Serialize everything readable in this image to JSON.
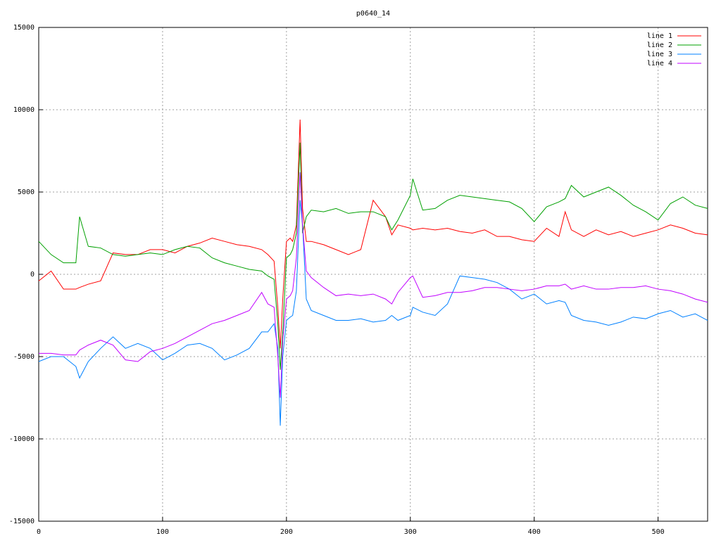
{
  "chart_data": {
    "type": "line",
    "title": "p0640_14",
    "x": [
      0,
      10,
      20,
      30,
      33,
      40,
      50,
      60,
      70,
      80,
      90,
      100,
      110,
      120,
      130,
      140,
      150,
      160,
      170,
      180,
      185,
      190,
      193,
      195,
      197,
      200,
      203,
      205,
      208,
      211,
      213,
      216,
      220,
      230,
      240,
      250,
      260,
      270,
      280,
      285,
      290,
      300,
      302,
      310,
      320,
      330,
      340,
      350,
      360,
      370,
      380,
      390,
      400,
      410,
      420,
      425,
      430,
      440,
      450,
      460,
      470,
      480,
      490,
      500,
      510,
      520,
      530,
      540
    ],
    "series": [
      {
        "name": "line 1",
        "color": "#ff0000",
        "values": [
          -400,
          200,
          -900,
          -900,
          -800,
          -600,
          -400,
          1300,
          1200,
          1200,
          1500,
          1500,
          1300,
          1700,
          1900,
          2200,
          2000,
          1800,
          1700,
          1500,
          1200,
          800,
          -2000,
          -4500,
          -1500,
          2000,
          2200,
          2000,
          3000,
          9400,
          4000,
          2000,
          2000,
          1800,
          1500,
          1200,
          1500,
          4500,
          3500,
          2400,
          3000,
          2800,
          2700,
          2800,
          2700,
          2800,
          2600,
          2500,
          2700,
          2300,
          2300,
          2100,
          2000,
          2800,
          2300,
          3800,
          2700,
          2300,
          2700,
          2400,
          2600,
          2300,
          2500,
          2700,
          3000,
          2800,
          2500,
          2400
        ]
      },
      {
        "name": "line 2",
        "color": "#00a000",
        "values": [
          2000,
          1200,
          700,
          700,
          3500,
          1700,
          1600,
          1200,
          1100,
          1200,
          1300,
          1200,
          1500,
          1700,
          1600,
          1000,
          700,
          500,
          300,
          200,
          -100,
          -300,
          -3000,
          -5800,
          -3500,
          1000,
          1200,
          1500,
          2500,
          8000,
          2500,
          3500,
          3900,
          3800,
          4000,
          3700,
          3800,
          3800,
          3500,
          2700,
          3300,
          4800,
          5800,
          3900,
          4000,
          4500,
          4800,
          4700,
          4600,
          4500,
          4400,
          4000,
          3200,
          4100,
          4400,
          4600,
          5400,
          4700,
          5000,
          5300,
          4800,
          4200,
          3800,
          3300,
          4300,
          4700,
          4200,
          4000
        ]
      },
      {
        "name": "line 3",
        "color": "#0080ff",
        "values": [
          -5300,
          -5000,
          -5000,
          -5600,
          -6300,
          -5300,
          -4500,
          -3800,
          -4500,
          -4200,
          -4500,
          -5200,
          -4800,
          -4300,
          -4200,
          -4500,
          -5200,
          -4900,
          -4500,
          -3500,
          -3500,
          -3000,
          -4500,
          -9200,
          -5000,
          -2800,
          -2600,
          -2500,
          -1000,
          4500,
          3000,
          -1500,
          -2200,
          -2500,
          -2800,
          -2800,
          -2700,
          -2900,
          -2800,
          -2500,
          -2800,
          -2500,
          -2000,
          -2300,
          -2500,
          -1800,
          -100,
          -200,
          -300,
          -500,
          -900,
          -1500,
          -1200,
          -1800,
          -1600,
          -1700,
          -2500,
          -2800,
          -2900,
          -3100,
          -2900,
          -2600,
          -2700,
          -2400,
          -2200,
          -2600,
          -2400,
          -2800
        ]
      },
      {
        "name": "line 4",
        "color": "#c000ff",
        "values": [
          -4800,
          -4800,
          -4900,
          -4900,
          -4600,
          -4300,
          -4000,
          -4300,
          -5200,
          -5300,
          -4700,
          -4500,
          -4200,
          -3800,
          -3400,
          -3000,
          -2800,
          -2500,
          -2200,
          -1100,
          -1800,
          -2000,
          -5000,
          -7500,
          -4000,
          -1500,
          -1300,
          -1000,
          1000,
          6200,
          3000,
          200,
          -200,
          -800,
          -1300,
          -1200,
          -1300,
          -1200,
          -1500,
          -1800,
          -1100,
          -200,
          -100,
          -1400,
          -1300,
          -1100,
          -1100,
          -1000,
          -800,
          -800,
          -900,
          -1000,
          -900,
          -700,
          -700,
          -600,
          -900,
          -700,
          -900,
          -900,
          -800,
          -800,
          -700,
          -900,
          -1000,
          -1200,
          -1500,
          -1700
        ]
      }
    ],
    "xlim": [
      0,
      540
    ],
    "xticks": [
      0,
      100,
      200,
      300,
      400,
      500
    ],
    "ylim": [
      -15000,
      15000
    ],
    "yticks": [
      -15000,
      -10000,
      -5000,
      0,
      5000,
      10000,
      15000
    ],
    "grid": true,
    "legend": "top-right"
  }
}
